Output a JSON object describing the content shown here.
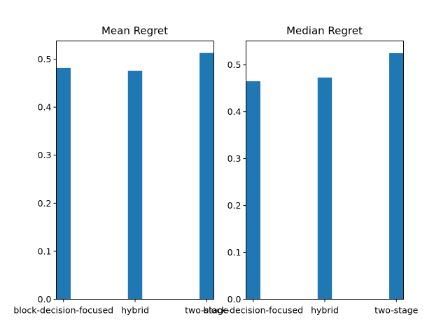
{
  "chart_data": [
    {
      "type": "bar",
      "title": "Mean Regret",
      "categories": [
        "block-decision-focused",
        "hybrid",
        "two-stage"
      ],
      "values": [
        0.482,
        0.476,
        0.513
      ],
      "ylim": [
        0,
        0.538
      ],
      "yticks": [
        "0.0",
        "0.1",
        "0.2",
        "0.3",
        "0.4",
        "0.5"
      ],
      "bar_color": "#1f77b4",
      "grid": false
    },
    {
      "type": "bar",
      "title": "Median Regret",
      "categories": [
        "block-decision-focused",
        "hybrid",
        "two-stage"
      ],
      "values": [
        0.465,
        0.473,
        0.525
      ],
      "ylim": [
        0,
        0.551
      ],
      "yticks": [
        "0.0",
        "0.1",
        "0.2",
        "0.3",
        "0.4",
        "0.5"
      ],
      "bar_color": "#1f77b4",
      "grid": false
    }
  ]
}
